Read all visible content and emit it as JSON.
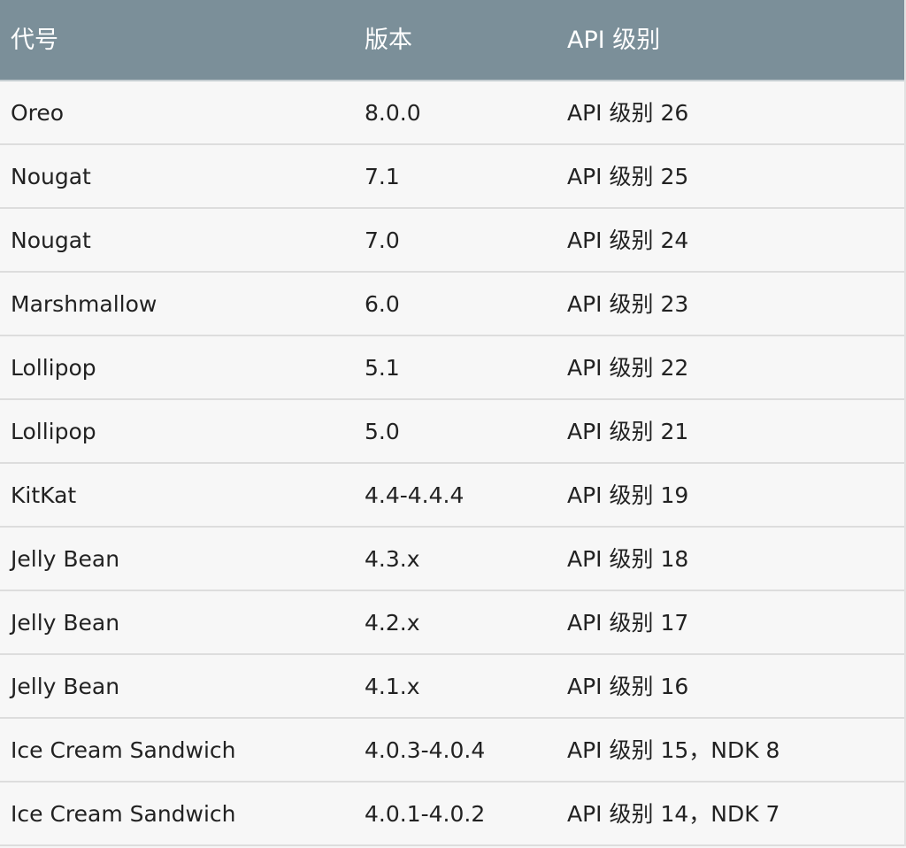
{
  "table": {
    "headers": [
      "代号",
      "版本",
      "API 级别"
    ],
    "rows": [
      [
        "Oreo",
        "8.0.0",
        "API 级别 26"
      ],
      [
        "Nougat",
        "7.1",
        "API 级别 25"
      ],
      [
        "Nougat",
        "7.0",
        "API 级别 24"
      ],
      [
        "Marshmallow",
        "6.0",
        "API 级别 23"
      ],
      [
        "Lollipop",
        "5.1",
        "API 级别 22"
      ],
      [
        "Lollipop",
        "5.0",
        "API 级别 21"
      ],
      [
        "KitKat",
        "4.4-4.4.4",
        "API 级别 19"
      ],
      [
        "Jelly Bean",
        "4.3.x",
        "API 级别 18"
      ],
      [
        "Jelly Bean",
        "4.2.x",
        "API 级别 17"
      ],
      [
        "Jelly Bean",
        "4.1.x",
        "API 级别 16"
      ],
      [
        "Ice Cream Sandwich",
        "4.0.3-4.0.4",
        "API 级别 15，NDK 8"
      ],
      [
        "Ice Cream Sandwich",
        "4.0.1-4.0.2",
        "API 级别 14，NDK 7"
      ]
    ]
  }
}
